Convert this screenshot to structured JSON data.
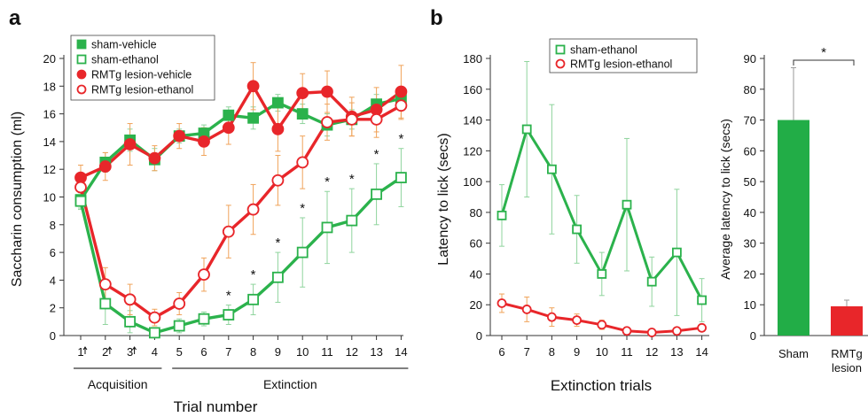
{
  "colors": {
    "green": "#2bb24c",
    "red": "#e8262a",
    "errGreen": "#8fd49d",
    "errRed": "#f0a35a",
    "axis": "#333333",
    "sham": "#22ad47",
    "lesion": "#e8262a"
  },
  "chart_data": [
    {
      "panel": "a",
      "type": "line",
      "ylabel": "Saccharin consumption (ml)",
      "xlabel": "Trial number",
      "ylim": [
        0,
        20
      ],
      "yticks": [
        "0",
        "2",
        "4",
        "6",
        "8",
        "10",
        "12",
        "14",
        "16",
        "18",
        "20"
      ],
      "x_labels": [
        "1",
        "2",
        "3",
        "4",
        "5",
        "6",
        "7",
        "8",
        "9",
        "10",
        "11",
        "12",
        "13",
        "14"
      ],
      "arrow_trials": [
        1,
        2,
        3
      ],
      "phases": [
        {
          "label": "Acquisition",
          "from": 1,
          "to": 4
        },
        {
          "label": "Extinction",
          "from": 5,
          "to": 14
        }
      ],
      "significance": {
        "symbol": "*",
        "trials": [
          7,
          8,
          9,
          10,
          11,
          12,
          13,
          14
        ]
      },
      "legend_position": "top-left",
      "series": [
        {
          "name": "sham-vehicle",
          "color": "green",
          "marker": "square-filled",
          "values": [
            9.8,
            12.5,
            14.1,
            12.7,
            14.4,
            14.6,
            15.9,
            15.7,
            16.8,
            16.0,
            15.2,
            15.6,
            16.7,
            17.1
          ],
          "err": [
            0.6,
            0.7,
            0.8,
            0.8,
            0.5,
            0.6,
            0.6,
            0.8,
            0.6,
            0.7,
            0.8,
            0.7,
            0.7,
            0.6
          ]
        },
        {
          "name": "sham-ethanol",
          "color": "green",
          "marker": "square-open",
          "values": [
            9.7,
            2.3,
            1.0,
            0.2,
            0.7,
            1.2,
            1.5,
            2.6,
            4.2,
            6.0,
            7.8,
            8.3,
            10.2,
            11.4
          ],
          "err": [
            0.6,
            1.5,
            0.8,
            0.3,
            0.5,
            0.5,
            0.7,
            1.1,
            1.8,
            2.5,
            2.6,
            2.3,
            2.2,
            2.1
          ]
        },
        {
          "name": "RMTg lesion-vehicle",
          "color": "red",
          "marker": "circle-filled",
          "values": [
            11.4,
            12.2,
            13.8,
            12.8,
            14.4,
            14.0,
            15.0,
            18.0,
            14.9,
            17.5,
            17.6,
            15.8,
            16.3,
            17.6
          ],
          "err": [
            0.9,
            1.0,
            1.5,
            0.9,
            0.9,
            1.0,
            1.2,
            1.7,
            1.6,
            1.4,
            1.5,
            1.4,
            1.6,
            1.9
          ]
        },
        {
          "name": "RMTg lesion-ethanol",
          "color": "red",
          "marker": "circle-open",
          "values": [
            10.7,
            3.7,
            2.6,
            1.3,
            2.3,
            4.4,
            7.5,
            9.1,
            11.2,
            12.5,
            15.4,
            15.6,
            15.6,
            16.6
          ],
          "err": [
            0.8,
            1.2,
            1.1,
            0.6,
            0.8,
            1.2,
            1.9,
            1.8,
            1.8,
            1.9,
            1.3,
            1.2,
            1.3,
            1.0
          ]
        }
      ]
    },
    {
      "panel": "b",
      "type": "line",
      "ylabel": "Latency to lick (secs)",
      "xlabel": "Extinction trials",
      "ylim": [
        0,
        180
      ],
      "yticks": [
        "0",
        "20",
        "40",
        "60",
        "80",
        "100",
        "120",
        "140",
        "160",
        "180"
      ],
      "x_labels": [
        "6",
        "7",
        "8",
        "9",
        "10",
        "11",
        "12",
        "13",
        "14"
      ],
      "legend_position": "top",
      "series": [
        {
          "name": "sham-ethanol",
          "color": "green",
          "marker": "square-open",
          "values": [
            78,
            134,
            108,
            69,
            40,
            85,
            35,
            54,
            23
          ],
          "err": [
            20,
            44,
            42,
            22,
            14,
            43,
            16,
            41,
            14
          ]
        },
        {
          "name": "RMTg lesion-ethanol",
          "color": "red",
          "marker": "circle-open",
          "values": [
            21,
            17,
            12,
            10,
            7,
            3,
            2,
            3,
            5
          ],
          "err": [
            6,
            8,
            6,
            4,
            3,
            2,
            2,
            2,
            2
          ]
        }
      ]
    },
    {
      "panel": "b-inset",
      "type": "bar",
      "ylabel": "Average latency to lick (secs)",
      "ylim": [
        0,
        90
      ],
      "yticks": [
        "0",
        "10",
        "20",
        "30",
        "40",
        "50",
        "60",
        "70",
        "80",
        "90"
      ],
      "categories": [
        "Sham",
        "RMTg lesion"
      ],
      "category_lines": [
        [
          "Sham"
        ],
        [
          "RMTg",
          "lesion"
        ]
      ],
      "values": [
        70,
        9.5
      ],
      "err": [
        17,
        2
      ],
      "bar_colors": [
        "sham",
        "lesion"
      ],
      "significance": {
        "symbol": "*"
      }
    }
  ]
}
